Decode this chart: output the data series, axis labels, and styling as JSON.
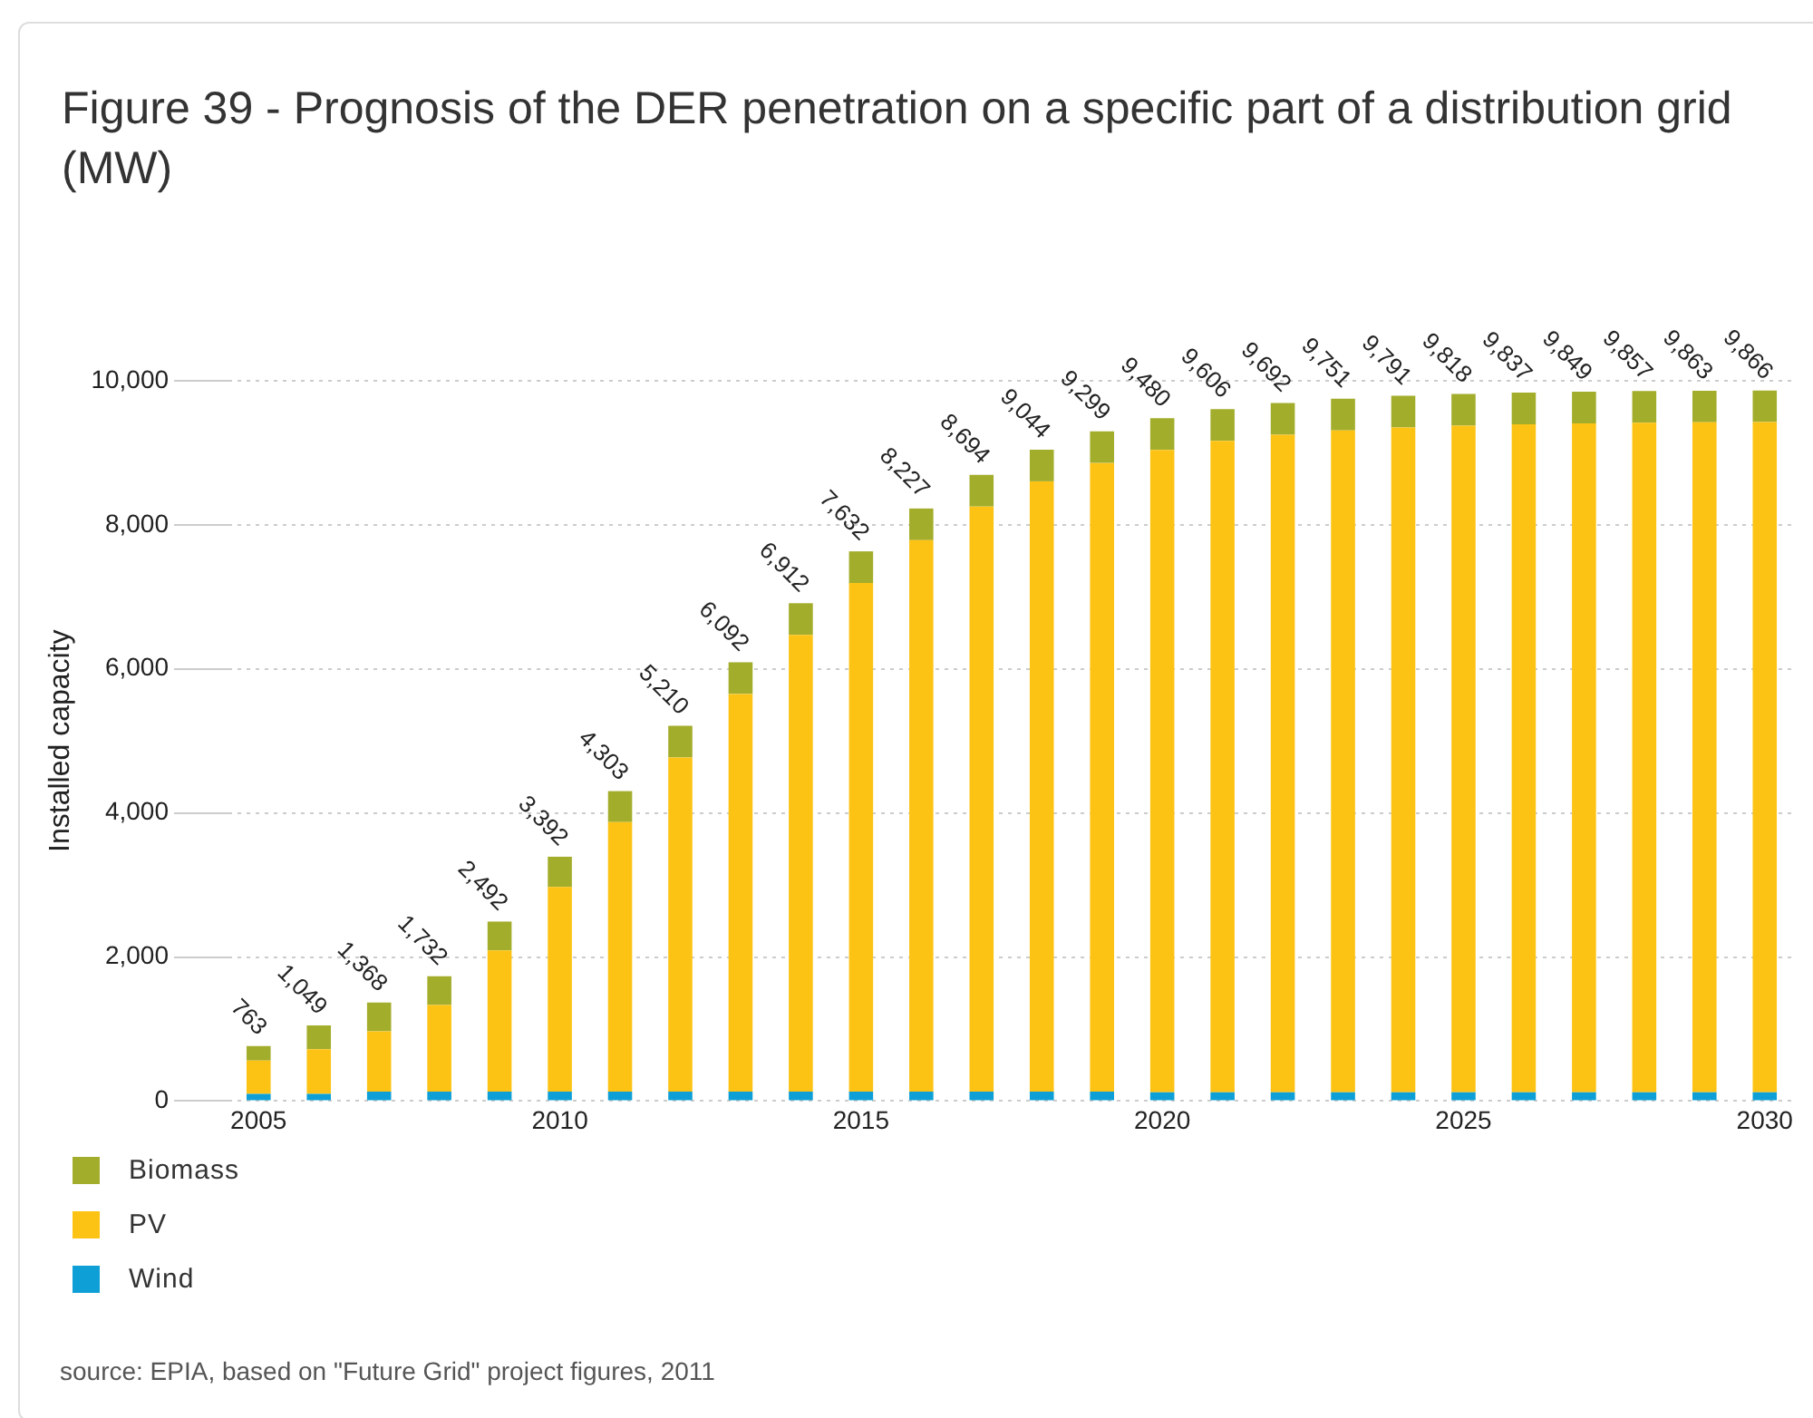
{
  "chart_data": {
    "type": "bar",
    "title": "Figure 39 - Prognosis of the DER penetration on a specific part of a distribution grid (MW)",
    "ylabel": "Installed capacity",
    "categories": [
      "2005",
      null,
      null,
      null,
      null,
      "2010",
      null,
      null,
      null,
      null,
      "2015",
      null,
      null,
      null,
      null,
      "2020",
      null,
      null,
      null,
      null,
      "2025",
      null,
      null,
      null,
      null,
      "2030"
    ],
    "stacked": true,
    "series": [
      {
        "name": "Wind",
        "color": "#0e9fd6",
        "values": [
          100,
          100,
          130,
          130,
          130,
          130,
          130,
          130,
          130,
          130,
          130,
          130,
          130,
          130,
          130,
          120,
          120,
          120,
          120,
          120,
          120,
          120,
          120,
          120,
          120,
          120
        ]
      },
      {
        "name": "PV",
        "color": "#fdc314",
        "values": [
          463,
          619,
          838,
          1202,
          1962,
          2842,
          3743,
          4640,
          5522,
          6342,
          7062,
          7657,
          8124,
          8474,
          8729,
          8920,
          9046,
          9132,
          9191,
          9231,
          9258,
          9277,
          9289,
          9297,
          9303,
          9306
        ]
      },
      {
        "name": "Biomass",
        "color": "#a3ad2c",
        "values": [
          200,
          330,
          400,
          400,
          400,
          420,
          430,
          440,
          440,
          440,
          440,
          440,
          440,
          440,
          440,
          440,
          440,
          440,
          440,
          440,
          440,
          440,
          440,
          440,
          440,
          440
        ]
      }
    ],
    "totals": [
      "763",
      "1,049",
      "1,368",
      "1,732",
      "2,492",
      "3,392",
      "4,303",
      "5,210",
      "6,092",
      "6,912",
      "7,632",
      "8,227",
      "8,694",
      "9,044",
      "9,299",
      "9,480",
      "9,606",
      "9,692",
      "9,751",
      "9,791",
      "9,818",
      "9,837",
      "9,849",
      "9,857",
      "9,863",
      "9,866"
    ],
    "ylim": [
      0,
      10000
    ],
    "yticks": [
      0,
      {
        "value": 2000,
        "label": "2,000"
      },
      {
        "value": 4000,
        "label": "4,000"
      },
      {
        "value": 6000,
        "label": "6,000"
      },
      {
        "value": 8000,
        "label": "8,000"
      },
      {
        "value": 10000,
        "label": "10,000"
      }
    ],
    "grid": "y",
    "legend": "bottom left",
    "annotations": [
      "source: EPIA, based on \"Future Grid\" project figures, 2011"
    ]
  }
}
